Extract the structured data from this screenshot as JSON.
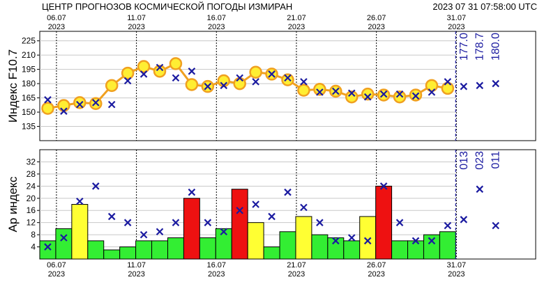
{
  "header": {
    "title": "ЦЕНТР ПРОГНОЗОВ КОСМИЧЕСКОЙ ПОГОДЫ ИЗМИРАН",
    "timestamp": "2023 07 31 07:58:00 UTC"
  },
  "date_ticks": [
    {
      "day": "06.07",
      "year": "2023"
    },
    {
      "day": "11.07",
      "year": "2023"
    },
    {
      "day": "16.07",
      "year": "2023"
    },
    {
      "day": "21.07",
      "year": "2023"
    },
    {
      "day": "26.07",
      "year": "2023"
    },
    {
      "day": "31.07",
      "year": "2023"
    }
  ],
  "colors": {
    "line": "#f0a020",
    "marker_fill": "#ffee33",
    "marker_edge": "#f0a020",
    "forecast": "#1a1aa0",
    "green": "#33ee33",
    "yellow": "#ffff33",
    "red": "#ee1111"
  },
  "chart_data": [
    {
      "type": "line",
      "ylabel": "Индекс F10.7",
      "ylim": [
        120,
        235
      ],
      "yticks": [
        135,
        150,
        165,
        180,
        195,
        210,
        225
      ],
      "day_range": [
        5,
        35
      ],
      "series": [
        {
          "days": [
            5,
            6,
            7,
            8,
            9,
            10,
            11,
            12,
            13,
            14,
            15,
            16,
            17,
            18,
            19,
            20,
            21,
            22,
            23,
            24,
            25,
            26,
            27,
            28,
            29,
            30
          ],
          "values": [
            154,
            157,
            160,
            159,
            178,
            191,
            198,
            193,
            201,
            179,
            177,
            183,
            180,
            192,
            190,
            184,
            173,
            174,
            172,
            166,
            169,
            168,
            166,
            168,
            178,
            175
          ]
        },
        {
          "days": [
            5,
            6,
            7,
            8,
            9,
            10,
            11,
            12,
            13,
            14,
            15,
            16,
            17,
            18,
            19,
            20,
            21,
            22,
            23,
            24,
            25,
            26,
            27,
            28,
            29,
            30,
            31,
            32,
            33
          ],
          "values": [
            163,
            151,
            158,
            160,
            158,
            183,
            190,
            197,
            186,
            193,
            177,
            178,
            186,
            182,
            190,
            186,
            182,
            171,
            172,
            170,
            166,
            169,
            169,
            167,
            171,
            182,
            177,
            178,
            180
          ]
        }
      ],
      "forecast_labels": [
        "177.0",
        "178.7",
        "180.0"
      ]
    },
    {
      "type": "bar",
      "ylabel": "Ap индекс",
      "ylim": [
        0,
        36
      ],
      "yticks": [
        4,
        8,
        12,
        16,
        20,
        24,
        28,
        32
      ],
      "day_range": [
        5,
        35
      ],
      "bars": [
        {
          "day": 5,
          "value": 6,
          "level": "green"
        },
        {
          "day": 6,
          "value": 10,
          "level": "green"
        },
        {
          "day": 7,
          "value": 18,
          "level": "yellow"
        },
        {
          "day": 8,
          "value": 6,
          "level": "green"
        },
        {
          "day": 9,
          "value": 3,
          "level": "green"
        },
        {
          "day": 10,
          "value": 4,
          "level": "green"
        },
        {
          "day": 11,
          "value": 6,
          "level": "green"
        },
        {
          "day": 12,
          "value": 6,
          "level": "green"
        },
        {
          "day": 13,
          "value": 7,
          "level": "green"
        },
        {
          "day": 14,
          "value": 20,
          "level": "red"
        },
        {
          "day": 15,
          "value": 7,
          "level": "green"
        },
        {
          "day": 16,
          "value": 10,
          "level": "green"
        },
        {
          "day": 17,
          "value": 23,
          "level": "red"
        },
        {
          "day": 18,
          "value": 12,
          "level": "yellow"
        },
        {
          "day": 19,
          "value": 4,
          "level": "green"
        },
        {
          "day": 20,
          "value": 9,
          "level": "green"
        },
        {
          "day": 21,
          "value": 14,
          "level": "yellow"
        },
        {
          "day": 22,
          "value": 8,
          "level": "green"
        },
        {
          "day": 23,
          "value": 7,
          "level": "green"
        },
        {
          "day": 24,
          "value": 6,
          "level": "green"
        },
        {
          "day": 25,
          "value": 14,
          "level": "yellow"
        },
        {
          "day": 26,
          "value": 24,
          "level": "red"
        },
        {
          "day": 27,
          "value": 6,
          "level": "green"
        },
        {
          "day": 28,
          "value": 6,
          "level": "green"
        },
        {
          "day": 29,
          "value": 8,
          "level": "green"
        },
        {
          "day": 30,
          "value": 9,
          "level": "green"
        }
      ],
      "series": [
        {
          "days": [
            5,
            6,
            7,
            8,
            9,
            10,
            11,
            12,
            13,
            14,
            15,
            16,
            17,
            18,
            19,
            20,
            21,
            22,
            23,
            24,
            25,
            26,
            27,
            28,
            29,
            30,
            31,
            32,
            33
          ],
          "values": [
            4,
            7,
            19,
            24,
            14,
            12,
            8,
            9,
            12,
            22,
            12,
            9,
            16,
            18,
            14,
            22,
            17,
            12,
            6,
            7,
            6,
            24,
            12,
            6,
            6,
            11,
            13,
            23,
            11
          ]
        }
      ],
      "forecast_labels": [
        "013",
        "023",
        "011"
      ]
    }
  ]
}
